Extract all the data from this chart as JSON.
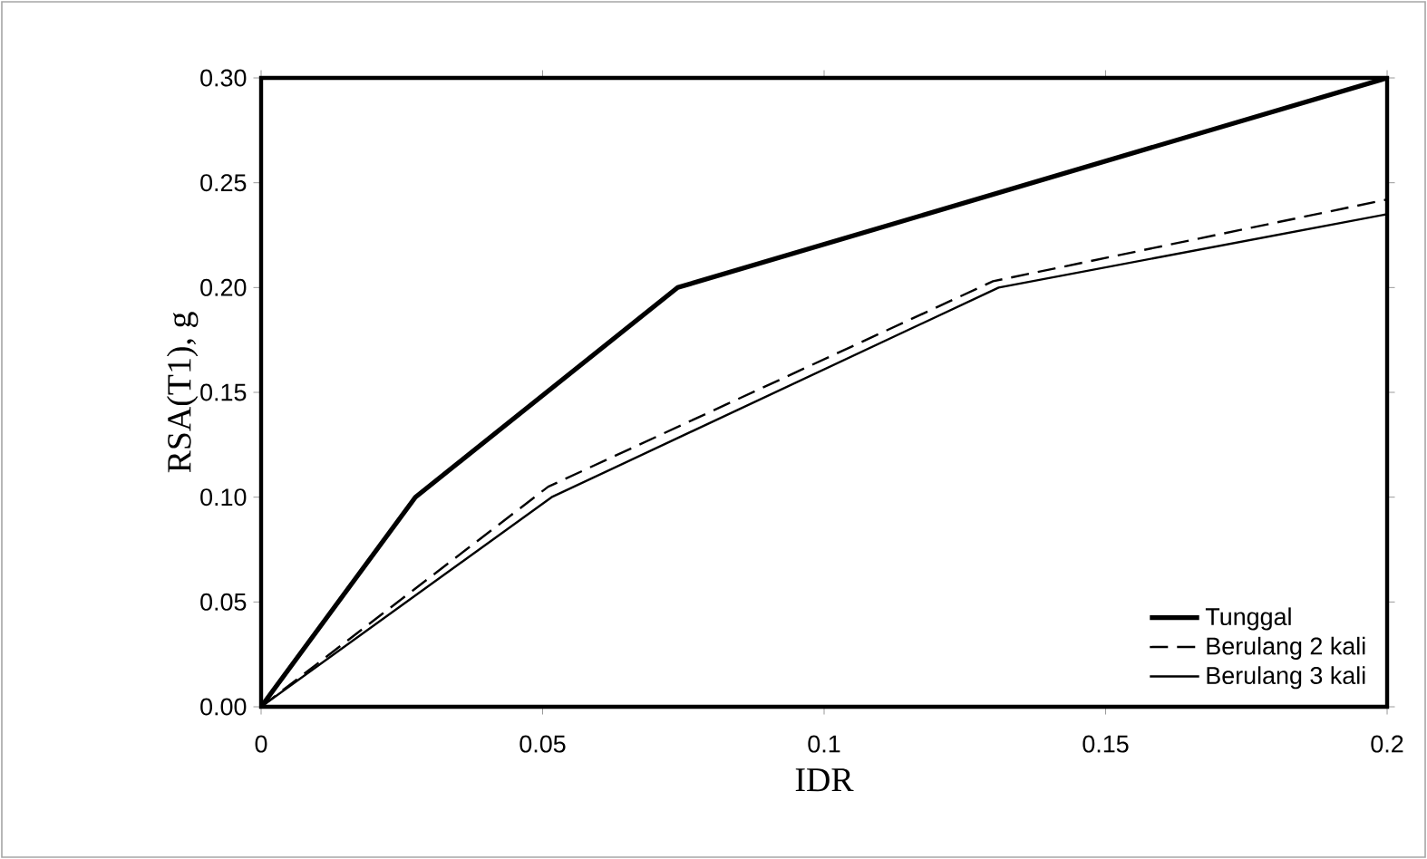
{
  "chart_data": {
    "type": "line",
    "xlabel": "IDR",
    "ylabel": "RSA(T1), g",
    "xlim": [
      0,
      0.2
    ],
    "xticks": [
      0,
      0.05,
      0.1,
      0.15,
      0.2
    ],
    "ylim": [
      0,
      0.3
    ],
    "yticks": [
      {
        "value": 0,
        "label": "0.00"
      },
      {
        "value": 0.05,
        "label": "0.05"
      },
      {
        "value": 0.1,
        "label": "0.10"
      },
      {
        "value": 0.15,
        "label": "0.15"
      },
      {
        "value": 0.2,
        "label": "0.20"
      },
      {
        "value": 0.25,
        "label": "0.25"
      },
      {
        "value": 0.3,
        "label": "0.30"
      }
    ],
    "grid": false,
    "legend": "bottom right",
    "marker": "none",
    "series": [
      {
        "name": "Tunggal",
        "color": "#000000",
        "line_style": "solid",
        "x": [
          0,
          0.0274,
          0.074,
          0.2
        ],
        "values": [
          0,
          0.1,
          0.2,
          0.3
        ]
      },
      {
        "name": "Berulang 2 kali",
        "color": "#000000",
        "line_style": "dashed",
        "x": [
          0,
          0.051,
          0.13,
          0.2
        ],
        "values": [
          0,
          0.105,
          0.203,
          0.242
        ]
      },
      {
        "name": "Berulang 3 kali",
        "color": "#000000",
        "line_style": "solid",
        "x": [
          0,
          0.0516,
          0.131,
          0.2
        ],
        "values": [
          0,
          0.1,
          0.2,
          0.235
        ]
      }
    ]
  }
}
